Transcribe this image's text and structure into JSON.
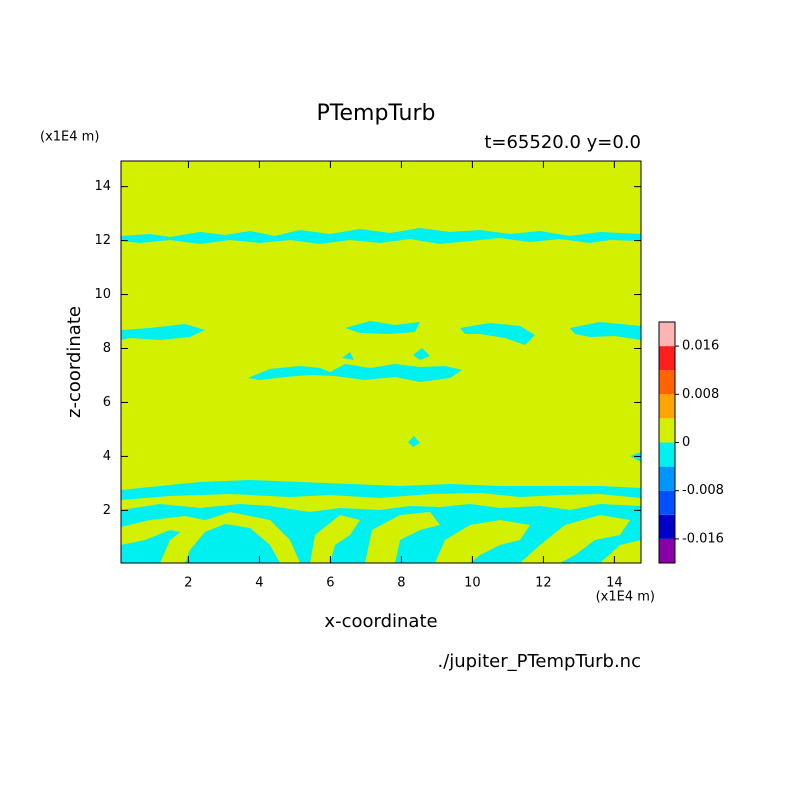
{
  "chart_data": {
    "type": "contour",
    "title": "PTempTurb",
    "subtitle": "t=65520.0 y=0.0",
    "x_label": "x-coordinate",
    "y_label": "z-coordinate",
    "x_unit": "(x1E4 m)",
    "y_unit": "(x1E4 m)",
    "source": "./jupiter_PTempTurb.nc",
    "xlim": [
      0.1,
      14.75
    ],
    "ylim": [
      0.05,
      14.95
    ],
    "xticks": [
      2,
      4,
      6,
      8,
      10,
      12,
      14
    ],
    "yticks": [
      2,
      4,
      6,
      8,
      10,
      12,
      14
    ],
    "colorbar": {
      "levels": [
        -0.016,
        -0.012,
        -0.008,
        -0.004,
        0,
        0.004,
        0.008,
        0.012,
        0.016
      ],
      "colors": [
        "#8a00a8",
        "#0000c8",
        "#0050ff",
        "#0096ff",
        "#00f0f0",
        "#d2f000",
        "#ffa500",
        "#ff6400",
        "#ff1e1e",
        "#ffb4b4"
      ],
      "ticks": [
        -0.016,
        -0.008,
        0,
        0.008,
        0.016
      ]
    }
  }
}
